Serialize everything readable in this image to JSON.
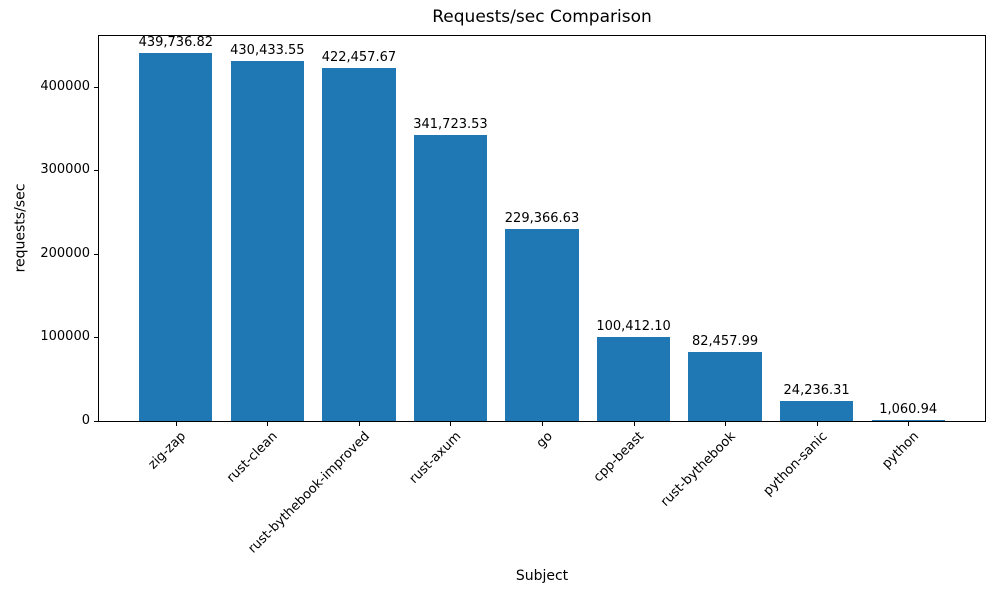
{
  "chart_data": {
    "type": "bar",
    "title": "Requests/sec Comparison",
    "xlabel": "Subject",
    "ylabel": "requests/sec",
    "categories": [
      "zig-zap",
      "rust-clean",
      "rust-bythebook-improved",
      "rust-axum",
      "go",
      "cpp-beast",
      "rust-bythebook",
      "python-sanic",
      "python"
    ],
    "values": [
      439736.82,
      430433.55,
      422457.67,
      341723.53,
      229366.63,
      100412.1,
      82457.99,
      24236.31,
      1060.94
    ],
    "value_labels": [
      "439,736.82",
      "430,433.55",
      "422,457.67",
      "341,723.53",
      "229,366.63",
      "100,412.10",
      "82,457.99",
      "24,236.31",
      "1,060.94"
    ],
    "yticks": [
      0,
      100000,
      200000,
      300000,
      400000
    ],
    "ytick_labels": [
      "0",
      "100000",
      "200000",
      "300000",
      "400000"
    ],
    "ylim": [
      0,
      461724
    ],
    "bar_color": "#1f77b4",
    "grid": false,
    "legend": null,
    "x_tick_label_rotation_deg": 45
  }
}
